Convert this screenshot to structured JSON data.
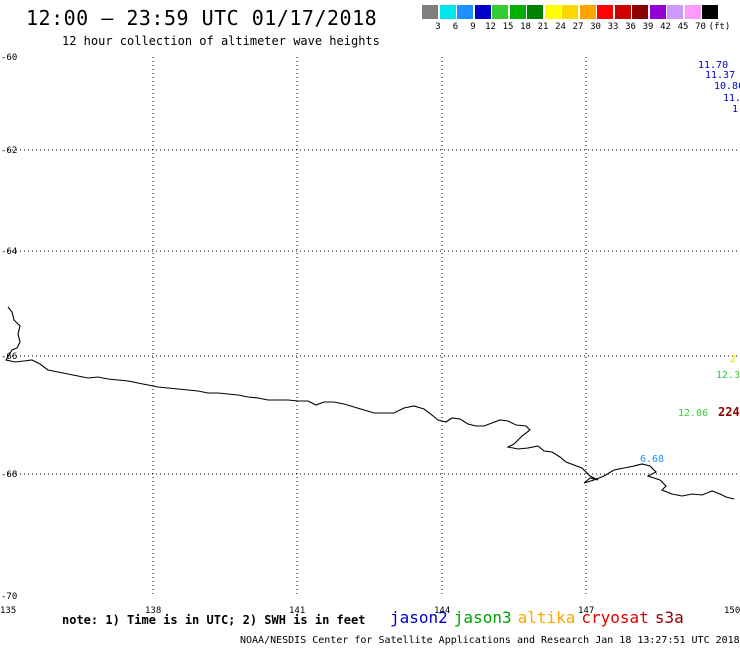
{
  "header": {
    "title": "12:00 – 23:59 UTC 01/17/2018",
    "subtitle": "12 hour collection of altimeter wave heights"
  },
  "legend": {
    "unit": "(ft)",
    "items": [
      {
        "label": "3",
        "color": "#7f7f7f"
      },
      {
        "label": "6",
        "color": "#00e5ee"
      },
      {
        "label": "9",
        "color": "#1e90ff"
      },
      {
        "label": "12",
        "color": "#0000cd"
      },
      {
        "label": "15",
        "color": "#32cd32"
      },
      {
        "label": "18",
        "color": "#00b000"
      },
      {
        "label": "21",
        "color": "#008000"
      },
      {
        "label": "24",
        "color": "#ffff00"
      },
      {
        "label": "27",
        "color": "#ffd700"
      },
      {
        "label": "30",
        "color": "#ffa500"
      },
      {
        "label": "33",
        "color": "#ff0000"
      },
      {
        "label": "36",
        "color": "#cc0000"
      },
      {
        "label": "39",
        "color": "#8b0000"
      },
      {
        "label": "42",
        "color": "#9400d3"
      },
      {
        "label": "45",
        "color": "#cc99ff"
      },
      {
        "label": "70",
        "color": "#ff99ff"
      },
      {
        "label": "",
        "color": "#000000"
      }
    ]
  },
  "map": {
    "lat_labels": [
      "-60",
      "-62",
      "-64",
      "-66",
      "-68",
      "-70"
    ],
    "lon_labels": [
      "135",
      "138",
      "141",
      "144",
      "147",
      "150"
    ],
    "grid": "dotted",
    "observations": [
      {
        "text": "11.70",
        "color": "#0000cd"
      },
      {
        "text": "11.37",
        "color": "#0000cd"
      },
      {
        "text": "10.80",
        "color": "#0000cd"
      },
      {
        "text": "11.",
        "color": "#0000cd"
      },
      {
        "text": "1",
        "color": "#0000cd"
      },
      {
        "text": "2",
        "color": "#e6e600"
      },
      {
        "text": "12.3",
        "color": "#32cd32"
      },
      {
        "text": "12.06",
        "color": "#32cd32"
      },
      {
        "text": "224",
        "color": "#8b0000"
      },
      {
        "text": "6.68",
        "color": "#1e90ff"
      }
    ]
  },
  "footer": {
    "note": "note: 1) Time is in UTC; 2) SWH is in feet",
    "satellites": [
      {
        "name": "jason2",
        "color": "#0000cd"
      },
      {
        "name": "jason3",
        "color": "#00a000"
      },
      {
        "name": "altika",
        "color": "#ffa500"
      },
      {
        "name": "cryosat",
        "color": "#e00000"
      },
      {
        "name": "s3a",
        "color": "#8b0000"
      }
    ],
    "credit": "NOAA/NESDIS Center for Satellite Applications and Research    Jan 18 13:27:51 UTC 2018"
  }
}
